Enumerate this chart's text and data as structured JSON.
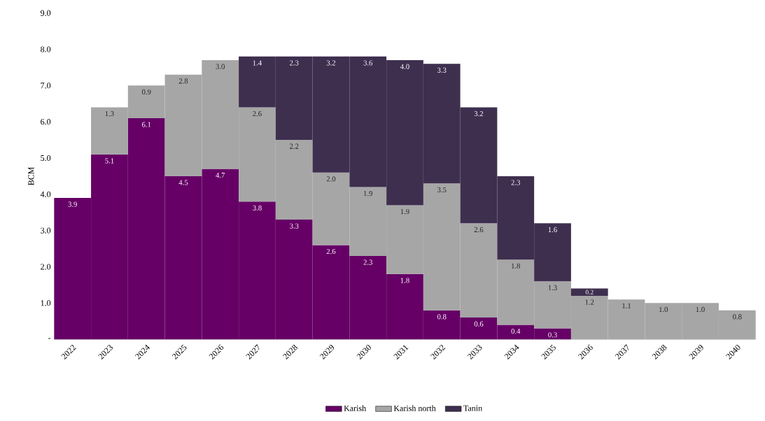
{
  "chart_data": {
    "type": "bar",
    "stacked": true,
    "ylabel": "BCM",
    "categories": [
      "2022",
      "2023",
      "2024",
      "2025",
      "2026",
      "2027",
      "2028",
      "2029",
      "2030",
      "2031",
      "2032",
      "2033",
      "2034",
      "2035",
      "2036",
      "2037",
      "2038",
      "2039",
      "2040"
    ],
    "series": [
      {
        "name": "Karish",
        "color": "#660066",
        "values": [
          3.9,
          5.1,
          6.1,
          4.5,
          4.7,
          3.8,
          3.3,
          2.6,
          2.3,
          1.8,
          0.8,
          0.6,
          0.4,
          0.3,
          null,
          null,
          null,
          null,
          null
        ],
        "value_labels": [
          "3.9",
          "5.1",
          "6.1",
          "4.5",
          "4.7",
          "3.8",
          "3.3",
          "2.6",
          "2.3",
          "1.8",
          "0.8",
          "0.6",
          "0.4",
          "0.3",
          null,
          null,
          null,
          null,
          null
        ]
      },
      {
        "name": "Karish north",
        "color": "#a6a6a6",
        "values": [
          null,
          1.3,
          0.9,
          2.8,
          3.0,
          2.6,
          2.2,
          2.0,
          1.9,
          1.9,
          3.5,
          2.6,
          1.8,
          1.3,
          1.2,
          1.1,
          1.0,
          1.0,
          0.8
        ],
        "value_labels": [
          null,
          "1.3",
          "0.9",
          "2.8",
          "3.0",
          "2.6",
          "2.2",
          "2.0",
          "1.9",
          "1.9",
          "3.5",
          "2.6",
          "1.8",
          "1.3",
          "1.2",
          "1.1",
          "1.0",
          "1.0",
          "0.8"
        ]
      },
      {
        "name": "Tanin",
        "color": "#3f2f4f",
        "values": [
          null,
          null,
          null,
          null,
          null,
          1.4,
          2.3,
          3.2,
          3.6,
          4.0,
          3.3,
          3.2,
          2.3,
          1.6,
          0.2,
          null,
          null,
          null,
          null
        ],
        "value_labels": [
          null,
          null,
          null,
          null,
          null,
          "1.4",
          "2.3",
          "3.2",
          "3.6",
          "4.0",
          "3.3",
          "3.2",
          "2.3",
          "1.6",
          "0.2",
          null,
          null,
          null,
          null
        ]
      }
    ],
    "ylim": [
      0,
      9
    ],
    "yticks": [
      {
        "value": 0,
        "label": "-"
      },
      {
        "value": 1,
        "label": "1.0"
      },
      {
        "value": 2,
        "label": "2.0"
      },
      {
        "value": 3,
        "label": "3.0"
      },
      {
        "value": 4,
        "label": "4.0"
      },
      {
        "value": 5,
        "label": "5.0"
      },
      {
        "value": 6,
        "label": "6.0"
      },
      {
        "value": 7,
        "label": "7.0"
      },
      {
        "value": 8,
        "label": "8.0"
      },
      {
        "value": 9,
        "label": "9.0"
      }
    ],
    "grid": false,
    "legend": "bottom"
  }
}
